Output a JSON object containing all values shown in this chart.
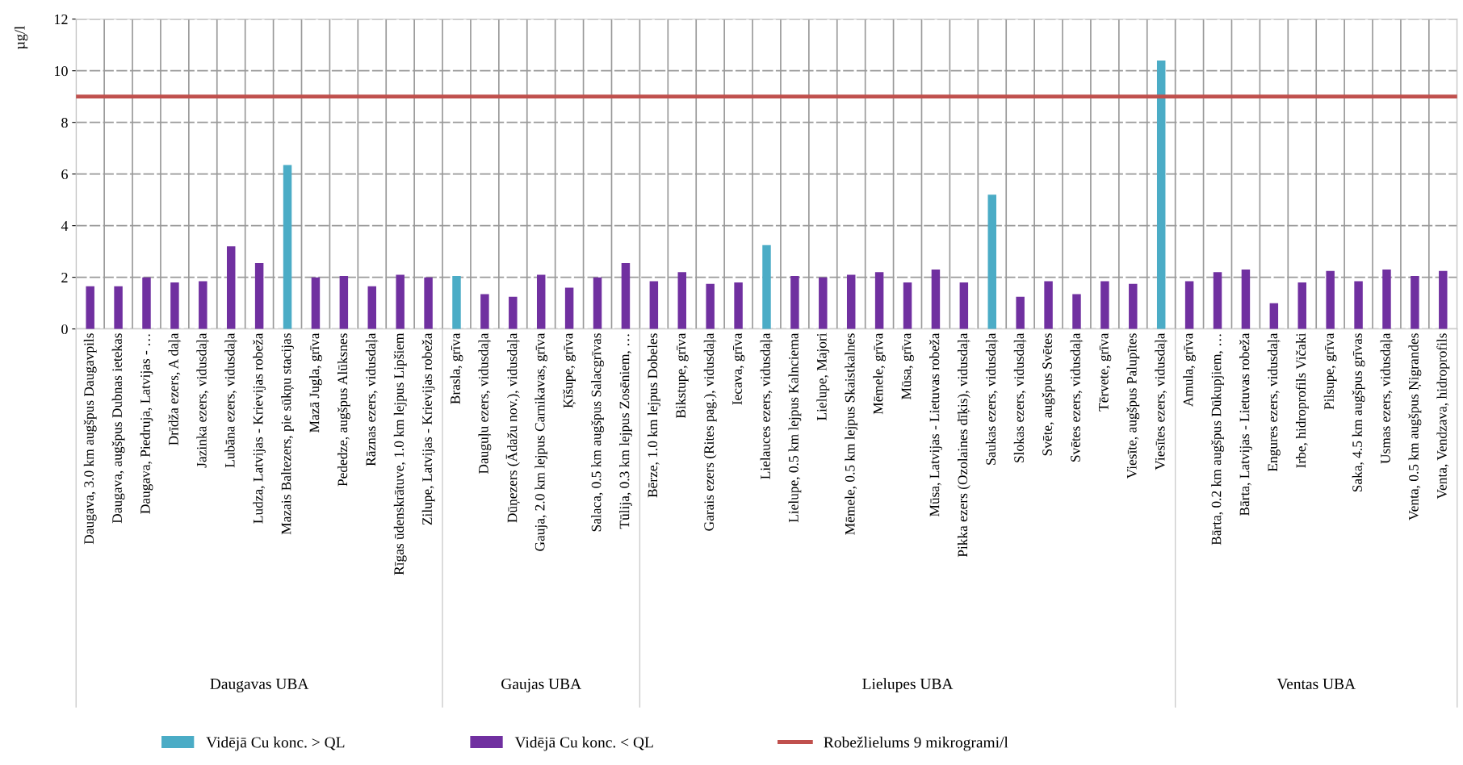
{
  "chart_data": {
    "type": "bar",
    "ylabel": "µg/l",
    "categories": [
      "Daugava, 3.0 km augšpus Daugavpils",
      "Daugava, augšpus Dubnas ietekas",
      "Daugava, Piedruja, Latvijas - …",
      "Drīdža ezers, A daļa",
      "Jazinka ezers, vidusdaļa",
      "Lubāna ezers, vidusdaļa",
      "Ludza, Latvijas - Krievijas robeža",
      "Mazais Baltezers, pie sūkņu stacijas",
      "Mazā Jugla, grīva",
      "Pededze, augšpus Alūksnes",
      "Rāznas ezers, vidusdaļa",
      "Rīgas ūdenskrātuve, 1.0 km lejpus Lipšiem",
      "Zilupe, Latvijas - Krievijas robeža",
      "Brasla, grīva",
      "Dauguļu ezers, vidusdaļa",
      "Dūņezers (Ādažu nov.), vidusdaļa",
      "Gauja, 2.0 km lejpus Carnikavas, grīva",
      "Ķīšupe, grīva",
      "Salaca, 0.5 km augšpus Salacgrīvas",
      "Tūlija, 0.3 km lejpus Zosēniem, …",
      "Bērze, 1.0 km lejpus Dobeles",
      "Bikstupe, grīva",
      "Garais ezers (Rites pag.), vidusdaļa",
      "Iecava, grīva",
      "Lielauces ezers, vidusdaļa",
      "Lielupe, 0.5 km lejpus Kalnciema",
      "Lielupe, Majori",
      "Mēmele, 0.5 km lejpus Skaistkalnes",
      "Mēmele, grīva",
      "Mūsa, grīva",
      "Mūsa, Latvijas - Lietuvas robeža",
      "Pikka ezers (Ozolaines dīķis), vidusdaļa",
      "Saukas ezers, vidusdaļa",
      "Slokas ezers, vidusdaļa",
      "Svēte, augšpus Svētes",
      "Svētes ezers, vidusdaļa",
      "Tērvete, grīva",
      "Viesīte, augšpus Palupītes",
      "Viesītes ezers, vidusdaļa",
      "Amula, grīva",
      "Bārta, 0.2 km augšpus Dūkupjiem, …",
      "Bārta, Latvijas - Lietuvas robeža",
      "Engures ezers, vidusdaļa",
      "Irbe, hidroprofils Vičaki",
      "Pilsupe, grīva",
      "Saka, 4.5 km augšpus grīvas",
      "Usmas ezers, vidusdaļa",
      "Venta, 0.5 km augšpus Ņigrandes",
      "Venta, Vendzava, hidroprofils"
    ],
    "series": [
      {
        "name": "Vidējā Cu konc. > QL",
        "color": "#4bacc6",
        "values": [
          null,
          null,
          null,
          null,
          null,
          null,
          null,
          6.35,
          null,
          null,
          null,
          null,
          null,
          2.05,
          null,
          null,
          null,
          null,
          null,
          null,
          null,
          null,
          null,
          null,
          3.25,
          null,
          null,
          null,
          null,
          null,
          null,
          null,
          5.2,
          null,
          null,
          null,
          null,
          null,
          10.4,
          null,
          null,
          null,
          null,
          null,
          null,
          null,
          null,
          null,
          null
        ]
      },
      {
        "name": "Vidējā Cu konc. < QL",
        "color": "#7030a0",
        "values": [
          1.65,
          1.65,
          2.0,
          1.8,
          1.85,
          3.2,
          2.55,
          null,
          2.0,
          2.05,
          1.65,
          2.1,
          2.0,
          null,
          1.35,
          1.25,
          2.1,
          1.6,
          2.0,
          2.55,
          1.85,
          2.2,
          1.75,
          1.8,
          null,
          2.05,
          2.0,
          2.1,
          2.2,
          1.8,
          2.3,
          1.8,
          null,
          1.25,
          1.85,
          1.35,
          1.85,
          1.75,
          null,
          1.85,
          2.2,
          2.3,
          1.0,
          1.8,
          2.25,
          1.85,
          2.3,
          2.05,
          2.25
        ]
      }
    ],
    "ylim": [
      0,
      12
    ],
    "yticks": [
      0,
      2,
      4,
      6,
      8,
      10,
      12
    ],
    "ref_lines": [
      {
        "axis": "y",
        "value": 9,
        "label": "Robežlielums 9 mikrogrami/l",
        "color": "#c0504d"
      }
    ],
    "annotations": [
      "Daugavas UBA",
      "Gaujas UBA",
      "Lielupes UBA",
      "Ventas UBA"
    ],
    "grid": true,
    "legend": "bottom"
  }
}
